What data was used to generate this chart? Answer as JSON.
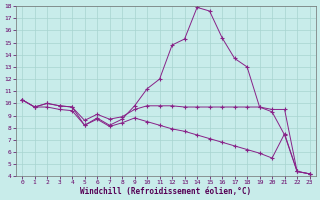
{
  "xlabel": "Windchill (Refroidissement éolien,°C)",
  "line_color": "#882288",
  "bg_color": "#c8ecea",
  "grid_color": "#a8d4d0",
  "ylim": [
    4,
    18
  ],
  "xlim": [
    -0.5,
    23.5
  ],
  "yticks": [
    4,
    5,
    6,
    7,
    8,
    9,
    10,
    11,
    12,
    13,
    14,
    15,
    16,
    17,
    18
  ],
  "xticks": [
    0,
    1,
    2,
    3,
    4,
    5,
    6,
    7,
    8,
    9,
    10,
    11,
    12,
    13,
    14,
    15,
    16,
    17,
    18,
    19,
    20,
    21,
    22,
    23
  ],
  "line1_x": [
    0,
    1,
    2,
    3,
    4,
    5,
    6,
    7,
    8,
    9,
    10,
    11,
    12,
    13,
    14,
    15,
    16,
    17,
    18,
    19,
    20,
    21,
    22,
    23
  ],
  "line1_y": [
    10.3,
    9.7,
    10.0,
    9.8,
    9.7,
    8.2,
    8.8,
    8.2,
    8.7,
    9.8,
    11.2,
    12.0,
    14.8,
    15.3,
    17.9,
    17.6,
    15.4,
    13.7,
    13.0,
    9.7,
    9.3,
    7.4,
    4.4,
    4.2
  ],
  "line2_x": [
    0,
    1,
    2,
    3,
    4,
    5,
    6,
    7,
    8,
    9,
    10,
    11,
    12,
    13,
    14,
    15,
    16,
    17,
    18,
    19,
    20,
    21,
    22,
    23
  ],
  "line2_y": [
    10.3,
    9.7,
    10.0,
    9.8,
    9.7,
    8.6,
    9.1,
    8.7,
    8.9,
    9.5,
    9.8,
    9.8,
    9.8,
    9.7,
    9.7,
    9.7,
    9.7,
    9.7,
    9.7,
    9.7,
    9.5,
    9.5,
    4.4,
    4.2
  ],
  "line3_x": [
    0,
    1,
    2,
    3,
    4,
    5,
    6,
    7,
    8,
    9,
    10,
    11,
    12,
    13,
    14,
    15,
    16,
    17,
    18,
    19,
    20,
    21,
    22,
    23
  ],
  "line3_y": [
    10.3,
    9.7,
    9.7,
    9.5,
    9.4,
    8.2,
    8.7,
    8.1,
    8.4,
    8.8,
    8.5,
    8.2,
    7.9,
    7.7,
    7.4,
    7.1,
    6.8,
    6.5,
    6.2,
    5.9,
    5.5,
    7.5,
    4.4,
    4.2
  ]
}
